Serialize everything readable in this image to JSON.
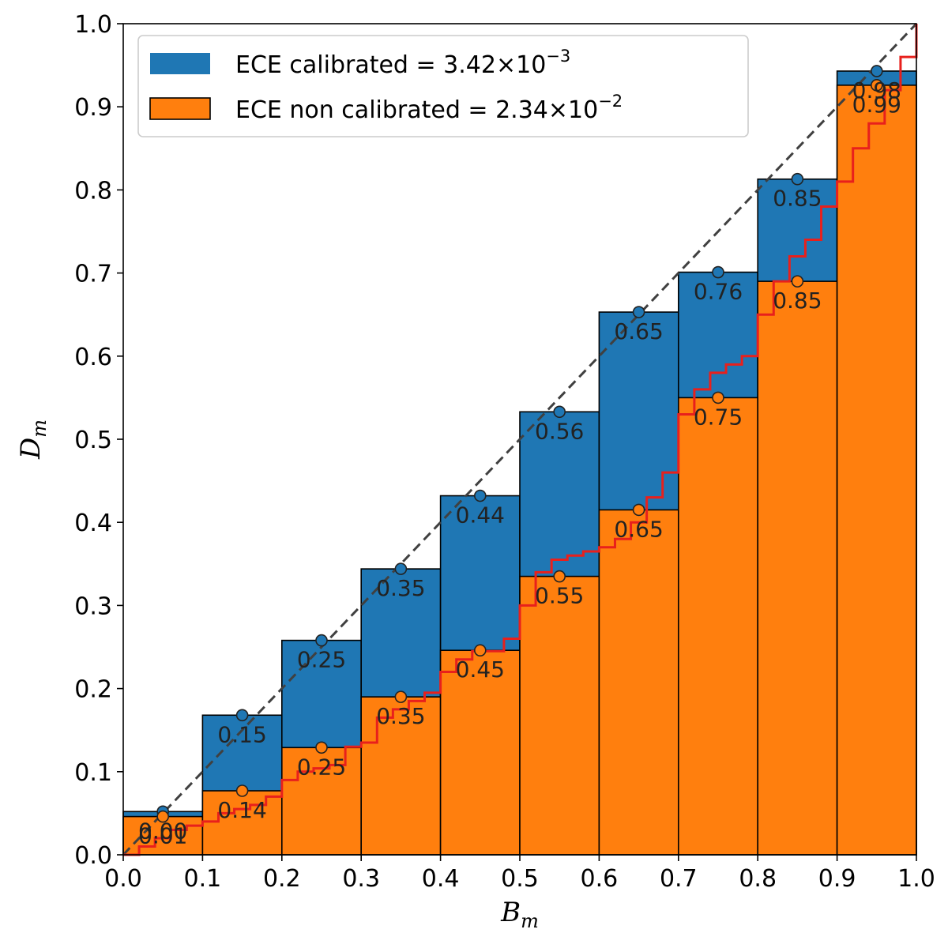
{
  "chart_data": {
    "type": "bar",
    "xlabel": "B",
    "xlabel_sub": "m",
    "ylabel": "D",
    "ylabel_sub": "m",
    "xlim": [
      0.0,
      1.0
    ],
    "ylim": [
      0.0,
      1.0
    ],
    "xticks": [
      "0.0",
      "0.1",
      "0.2",
      "0.3",
      "0.4",
      "0.5",
      "0.6",
      "0.7",
      "0.8",
      "0.9",
      "1.0"
    ],
    "yticks": [
      "0.0",
      "0.1",
      "0.2",
      "0.3",
      "0.4",
      "0.5",
      "0.6",
      "0.7",
      "0.8",
      "0.9",
      "1.0"
    ],
    "bin_edges": [
      0.0,
      0.1,
      0.2,
      0.3,
      0.4,
      0.5,
      0.6,
      0.7,
      0.8,
      0.9,
      1.0
    ],
    "legend_position": "upper-left",
    "series": [
      {
        "name_prefix": "ECE calibrated = 3.42×10",
        "name_exp": "−3",
        "color": "#1f77b4",
        "values": [
          0.052,
          0.168,
          0.258,
          0.344,
          0.432,
          0.533,
          0.653,
          0.701,
          0.813,
          0.943
        ],
        "labels": [
          "0.00",
          "0.15",
          "0.25",
          "0.35",
          "0.44",
          "0.56",
          "0.65",
          "0.76",
          "0.85",
          "0.98"
        ]
      },
      {
        "name_prefix": "ECE non calibrated = 2.34×10",
        "name_exp": "−2",
        "color": "#ff7f0e",
        "values": [
          0.046,
          0.077,
          0.129,
          0.19,
          0.246,
          0.335,
          0.415,
          0.55,
          0.69,
          0.926
        ],
        "labels": [
          "0.01",
          "0.14",
          "0.25",
          "0.35",
          "0.45",
          "0.55",
          "0.65",
          "0.75",
          "0.85",
          "0.99"
        ]
      }
    ],
    "marker_x": [
      0.05,
      0.15,
      0.25,
      0.35,
      0.45,
      0.55,
      0.65,
      0.75,
      0.85,
      0.95
    ],
    "diagonal": {
      "color": "#404040",
      "style": "dashed"
    },
    "red_step_line": {
      "color": "#e8201c",
      "x": [
        0.0,
        0.02,
        0.04,
        0.06,
        0.08,
        0.1,
        0.12,
        0.14,
        0.16,
        0.18,
        0.2,
        0.22,
        0.24,
        0.26,
        0.28,
        0.3,
        0.32,
        0.34,
        0.36,
        0.38,
        0.4,
        0.42,
        0.44,
        0.46,
        0.48,
        0.5,
        0.52,
        0.54,
        0.56,
        0.58,
        0.6,
        0.62,
        0.64,
        0.66,
        0.68,
        0.7,
        0.72,
        0.74,
        0.76,
        0.78,
        0.8,
        0.82,
        0.84,
        0.86,
        0.88,
        0.9,
        0.92,
        0.94,
        0.96,
        0.98,
        1.0
      ],
      "y": [
        0.0,
        0.01,
        0.02,
        0.03,
        0.035,
        0.04,
        0.05,
        0.055,
        0.06,
        0.07,
        0.09,
        0.1,
        0.104,
        0.108,
        0.13,
        0.135,
        0.165,
        0.175,
        0.185,
        0.195,
        0.22,
        0.235,
        0.245,
        0.245,
        0.26,
        0.3,
        0.34,
        0.355,
        0.36,
        0.365,
        0.37,
        0.38,
        0.4,
        0.43,
        0.46,
        0.53,
        0.56,
        0.58,
        0.59,
        0.6,
        0.65,
        0.69,
        0.72,
        0.74,
        0.78,
        0.81,
        0.85,
        0.88,
        0.92,
        0.96,
        1.0
      ]
    }
  }
}
